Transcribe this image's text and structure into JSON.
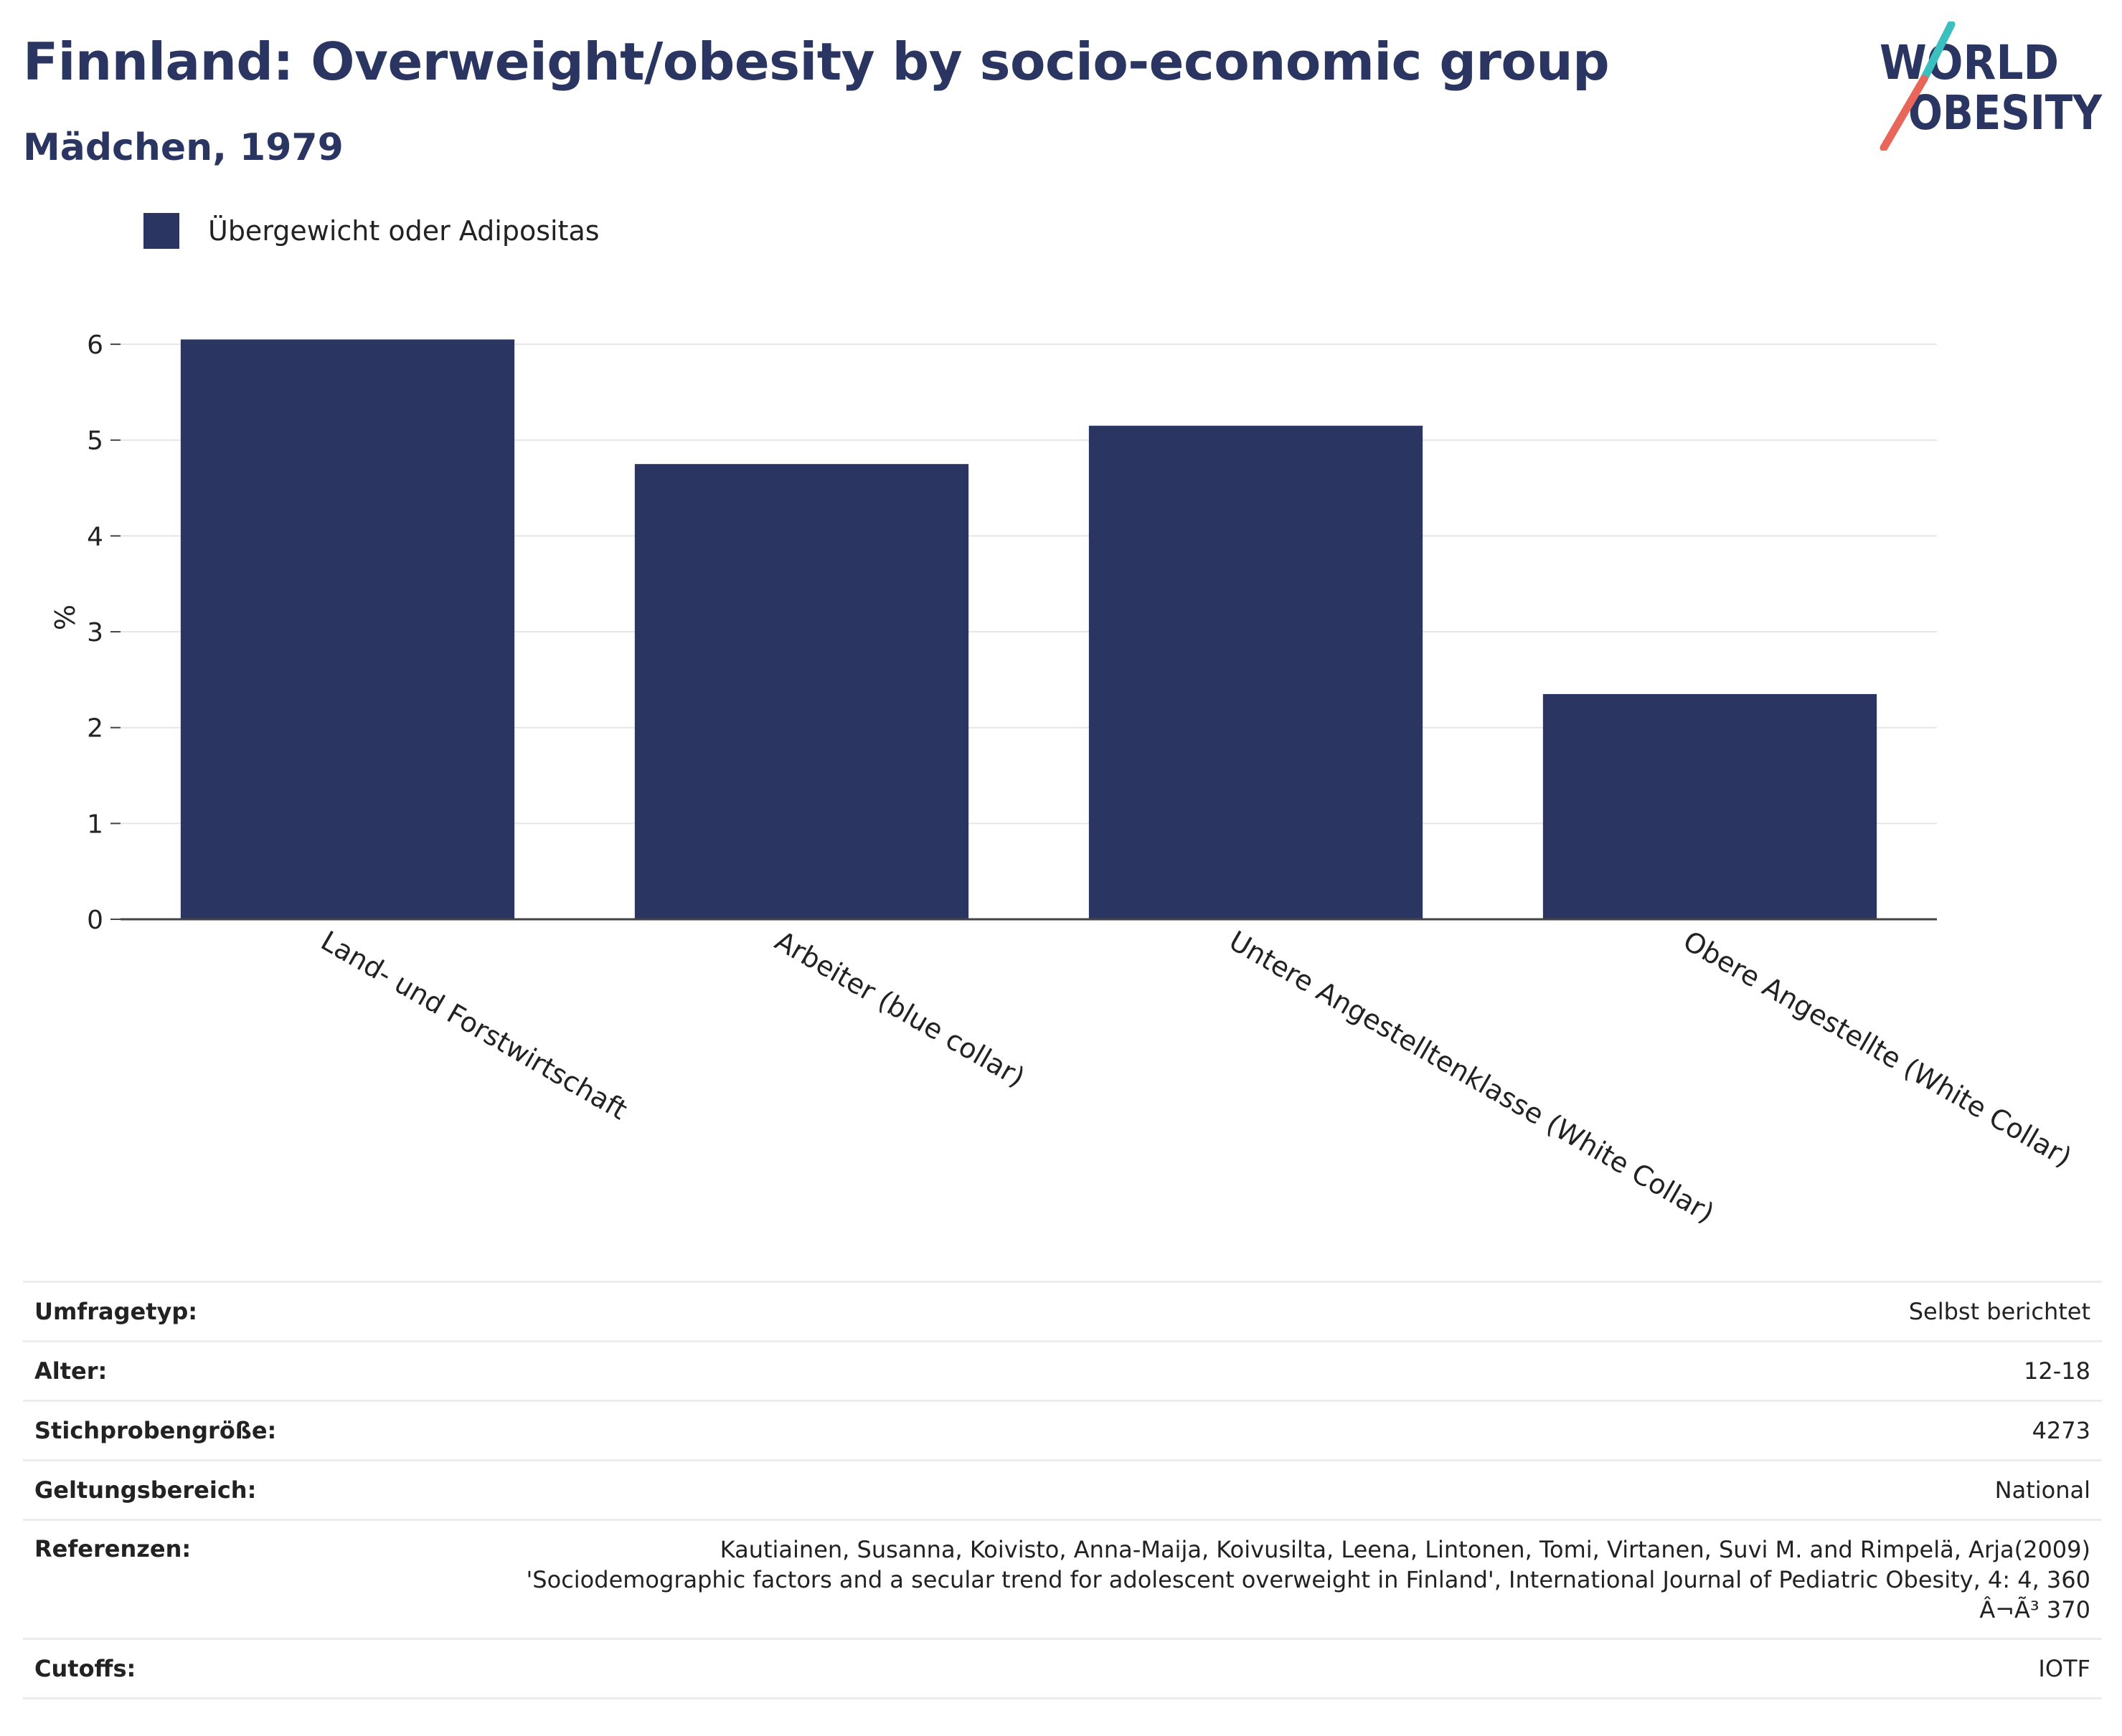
{
  "header": {
    "title": "Finnland: Overweight/obesity by socio-economic group",
    "subtitle": "Mädchen, 1979"
  },
  "logo": {
    "line1": "WORLD",
    "line2": "OBESITY",
    "colors": [
      "#2a3661",
      "#3bbfbf",
      "#e8675a"
    ]
  },
  "legend": {
    "label": "Übergewicht oder Adipositas",
    "color": "#2a3661"
  },
  "chart_data": {
    "type": "bar",
    "categories": [
      "Land- und Forstwirtschaft",
      "Arbeiter (blue collar)",
      "Untere Angestelltenklasse (White Collar)",
      "Obere Angestellte (White Collar)"
    ],
    "series": [
      {
        "name": "Übergewicht oder Adipositas",
        "values": [
          6.05,
          4.75,
          5.15,
          2.35
        ],
        "color": "#2a3661"
      }
    ],
    "ylabel": "%",
    "ylim": [
      0,
      6.3
    ],
    "yticks": [
      "0",
      "1",
      "2",
      "3",
      "4",
      "5",
      "6"
    ],
    "grid": true,
    "legend_position": "top-left"
  },
  "meta": [
    {
      "key": "Umfragetyp:",
      "value": "Selbst berichtet"
    },
    {
      "key": "Alter:",
      "value": "12-18"
    },
    {
      "key": "Stichprobengröße:",
      "value": "4273"
    },
    {
      "key": "Geltungsbereich:",
      "value": "National"
    },
    {
      "key": "Referenzen:",
      "value": [
        "Kautiainen, Susanna, Koivisto, Anna-Maija, Koivusilta, Leena, Lintonen, Tomi, Virtanen, Suvi M. and Rimpelä, Arja(2009)",
        "'Sociodemographic factors and a secular trend for adolescent overweight in Finland', International Journal of Pediatric Obesity, 4: 4, 360",
        "Â¬Ã³ 370"
      ]
    },
    {
      "key": "Cutoffs:",
      "value": "IOTF"
    }
  ]
}
